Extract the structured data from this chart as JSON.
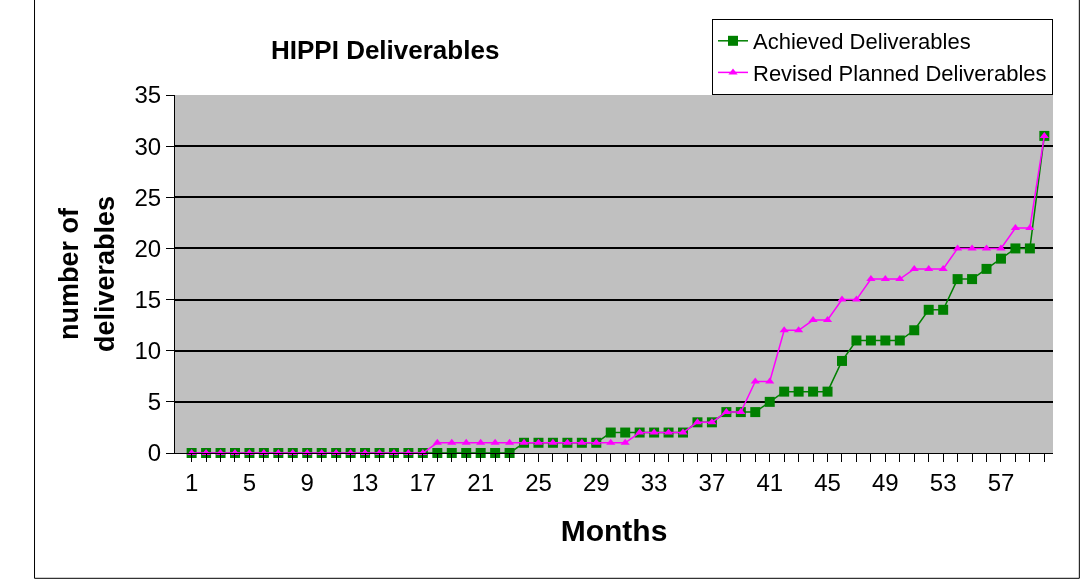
{
  "chart_data": {
    "type": "line",
    "title": "HIPPI Deliverables",
    "xlabel": "Months",
    "ylabel": "number of\ndeliverables",
    "categories": [
      "1",
      null,
      null,
      null,
      "5",
      null,
      null,
      null,
      "9",
      null,
      null,
      null,
      "13",
      null,
      null,
      null,
      "17",
      null,
      null,
      null,
      "21",
      null,
      null,
      null,
      "25",
      null,
      null,
      null,
      "29",
      null,
      null,
      null,
      "33",
      null,
      null,
      null,
      "37",
      null,
      null,
      null,
      "41",
      null,
      null,
      null,
      "45",
      null,
      null,
      null,
      "49",
      null,
      null,
      null,
      "53",
      null,
      null,
      null,
      "57",
      null,
      null,
      null
    ],
    "series": [
      {
        "name": "Achieved Deliverables",
        "color": "#008000",
        "marker": "square",
        "values": [
          0,
          0,
          0,
          0,
          0,
          0,
          0,
          0,
          0,
          0,
          0,
          0,
          0,
          0,
          0,
          0,
          0,
          0,
          0,
          0,
          0,
          0,
          0,
          1,
          1,
          1,
          1,
          1,
          1,
          2,
          2,
          2,
          2,
          2,
          2,
          3,
          3,
          4,
          4,
          4,
          5,
          6,
          6,
          6,
          6,
          9,
          11,
          11,
          11,
          11,
          12,
          14,
          14,
          17,
          17,
          18,
          19,
          20,
          20,
          31
        ]
      },
      {
        "name": "Revised Planned Deliverables",
        "color": "#ff00ff",
        "marker": "triangle",
        "values": [
          0,
          0,
          0,
          0,
          0,
          0,
          0,
          0,
          0,
          0,
          0,
          0,
          0,
          0,
          0,
          0,
          0,
          1,
          1,
          1,
          1,
          1,
          1,
          1,
          1,
          1,
          1,
          1,
          1,
          1,
          1,
          2,
          2,
          2,
          2,
          3,
          3,
          4,
          4,
          7,
          7,
          12,
          12,
          13,
          13,
          15,
          15,
          17,
          17,
          17,
          18,
          18,
          18,
          20,
          20,
          20,
          20,
          22,
          22,
          31
        ]
      }
    ],
    "ylim": [
      0,
      35
    ],
    "yticks": [
      0,
      5,
      10,
      15,
      20,
      25,
      30,
      35
    ],
    "grid": "y",
    "legend": "top right",
    "line_style": "solid"
  }
}
